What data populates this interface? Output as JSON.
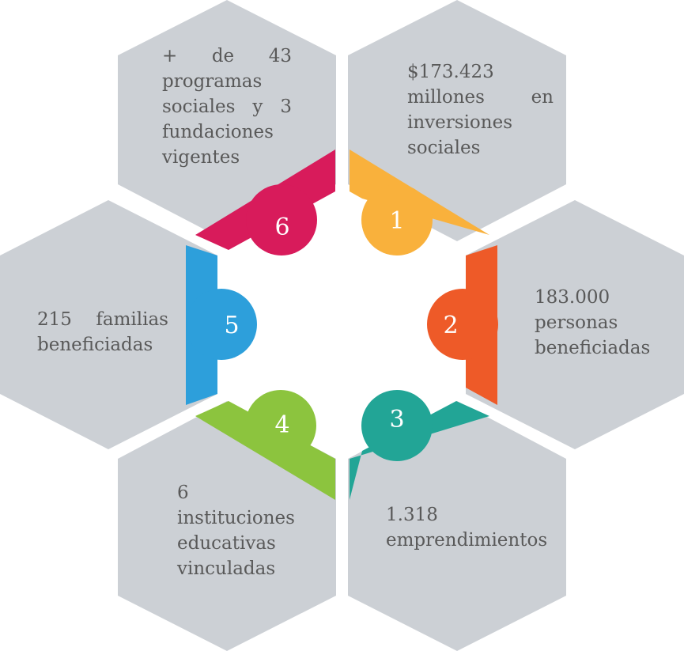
{
  "segments": [
    {
      "number": "1",
      "text": "$173.423 millones en inversiones sociales",
      "color": "#F9B13C"
    },
    {
      "number": "2",
      "text": "183.000 personas beneficiadas",
      "color": "#EE5A28"
    },
    {
      "number": "3",
      "text": "1.318 emprendimientos",
      "color": "#22A596"
    },
    {
      "number": "4",
      "text": "6 instituciones educativas vinculadas",
      "color": "#8CC43E"
    },
    {
      "number": "5",
      "text": "215 familias beneficiadas",
      "color": "#2D9FDB"
    },
    {
      "number": "6",
      "text": "+ de 43 programas sociales y 3 fundaciones vigentes",
      "color": "#D81B5B"
    }
  ],
  "hexagon_color": "#CCD0D5"
}
